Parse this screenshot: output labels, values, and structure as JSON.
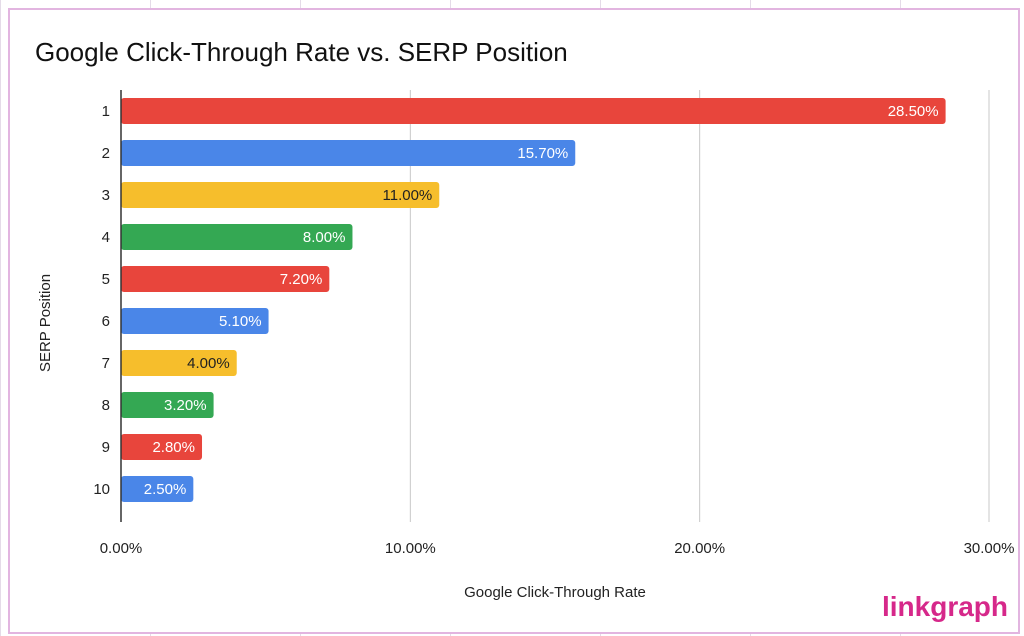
{
  "chart_data": {
    "type": "bar",
    "orientation": "horizontal",
    "title": "Google Click-Through Rate vs. SERP Position",
    "xlabel": "Google Click-Through Rate",
    "ylabel": "SERP Position",
    "xlim": [
      0,
      30
    ],
    "xticks": [
      "0.00%",
      "10.00%",
      "20.00%",
      "30.00%"
    ],
    "grid": true,
    "categories": [
      "1",
      "2",
      "3",
      "4",
      "5",
      "6",
      "7",
      "8",
      "9",
      "10"
    ],
    "values": [
      28.5,
      15.7,
      11.0,
      8.0,
      7.2,
      5.1,
      4.0,
      3.2,
      2.8,
      2.5
    ],
    "data_labels": [
      "28.50%",
      "15.70%",
      "11.00%",
      "8.00%",
      "7.20%",
      "5.10%",
      "4.00%",
      "3.20%",
      "2.80%",
      "2.50%"
    ],
    "colors": [
      "#E8453C",
      "#4A86E8",
      "#F6BE2C",
      "#34A853",
      "#E8453C",
      "#4A86E8",
      "#F6BE2C",
      "#34A853",
      "#E8453C",
      "#4A86E8"
    ],
    "label_colors": [
      "#ffffff",
      "#ffffff",
      "#222222",
      "#ffffff",
      "#ffffff",
      "#ffffff",
      "#222222",
      "#ffffff",
      "#ffffff",
      "#ffffff"
    ]
  },
  "logo": "linkgraph"
}
